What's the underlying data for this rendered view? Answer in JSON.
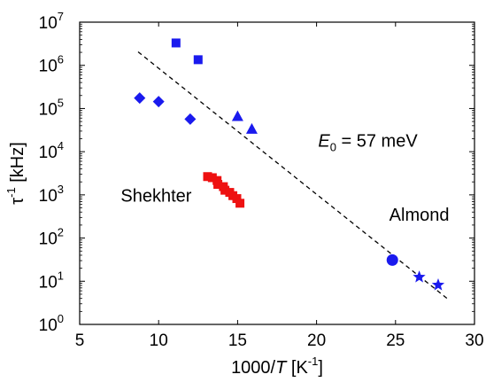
{
  "chart_data": {
    "type": "scatter",
    "title": "",
    "xlabel": {
      "prefix": "1000/",
      "var": "T",
      "unit_open": "  [K",
      "unit_sup": "-1",
      "unit_close": "]"
    },
    "ylabel": {
      "base": "τ",
      "sup": "-1",
      "unit": "  [kHz]"
    },
    "xlim": [
      5,
      30
    ],
    "ylim": [
      1,
      10000000
    ],
    "yscale": "log",
    "grid": false,
    "x_ticks": [
      5,
      10,
      15,
      20,
      25,
      30
    ],
    "x_tick_labels": [
      "5",
      "10",
      "15",
      "20",
      "25",
      "30"
    ],
    "y_ticks": [
      1,
      10,
      100,
      1000,
      10000,
      100000,
      1000000,
      10000000
    ],
    "y_tick_labels": [
      {
        "base": "10",
        "exp": "0"
      },
      {
        "base": "10",
        "exp": "1"
      },
      {
        "base": "10",
        "exp": "2"
      },
      {
        "base": "10",
        "exp": "3"
      },
      {
        "base": "10",
        "exp": "4"
      },
      {
        "base": "10",
        "exp": "5"
      },
      {
        "base": "10",
        "exp": "6"
      },
      {
        "base": "10",
        "exp": "7"
      }
    ],
    "series": [
      {
        "marker": "square",
        "color": "#1a1aee",
        "points": [
          [
            11.1,
            3300000
          ],
          [
            12.5,
            1350000
          ]
        ]
      },
      {
        "marker": "diamond",
        "color": "#1a1aee",
        "points": [
          [
            8.8,
            175000
          ],
          [
            10.0,
            145000
          ],
          [
            12.0,
            57000
          ]
        ]
      },
      {
        "marker": "triangle",
        "color": "#1a1aee",
        "points": [
          [
            15.0,
            65000
          ],
          [
            15.9,
            33000
          ]
        ]
      },
      {
        "marker": "square",
        "color": "#ee1111",
        "points": [
          [
            13.1,
            2650
          ],
          [
            13.4,
            2500
          ],
          [
            13.7,
            2150
          ],
          [
            13.75,
            1750
          ],
          [
            14.1,
            1550
          ],
          [
            14.2,
            1280
          ],
          [
            14.5,
            1140
          ],
          [
            14.7,
            960
          ],
          [
            14.95,
            820
          ],
          [
            15.15,
            640
          ]
        ]
      },
      {
        "marker": "circle",
        "color": "#1a1aee",
        "points": [
          [
            24.8,
            31
          ]
        ]
      },
      {
        "marker": "star",
        "color": "#1a1aee",
        "points": [
          [
            26.5,
            12.5
          ],
          [
            27.7,
            8.2
          ]
        ]
      }
    ],
    "fit_line": {
      "style": "dashed",
      "color": "#000000",
      "x": [
        8.7,
        28.3
      ],
      "y": [
        2050000,
        3.9
      ]
    },
    "annotations": [
      {
        "text": "Shekhter",
        "color": "#ee1111",
        "x": 7.6,
        "y": 700
      },
      {
        "text": "Almond",
        "color": "#1a1aee",
        "x": 24.6,
        "y": 250
      },
      {
        "var": "E",
        "sub": "0",
        "rest": " = 57 meV",
        "color": "#000000",
        "x": 20.1,
        "y": 13000
      }
    ]
  }
}
